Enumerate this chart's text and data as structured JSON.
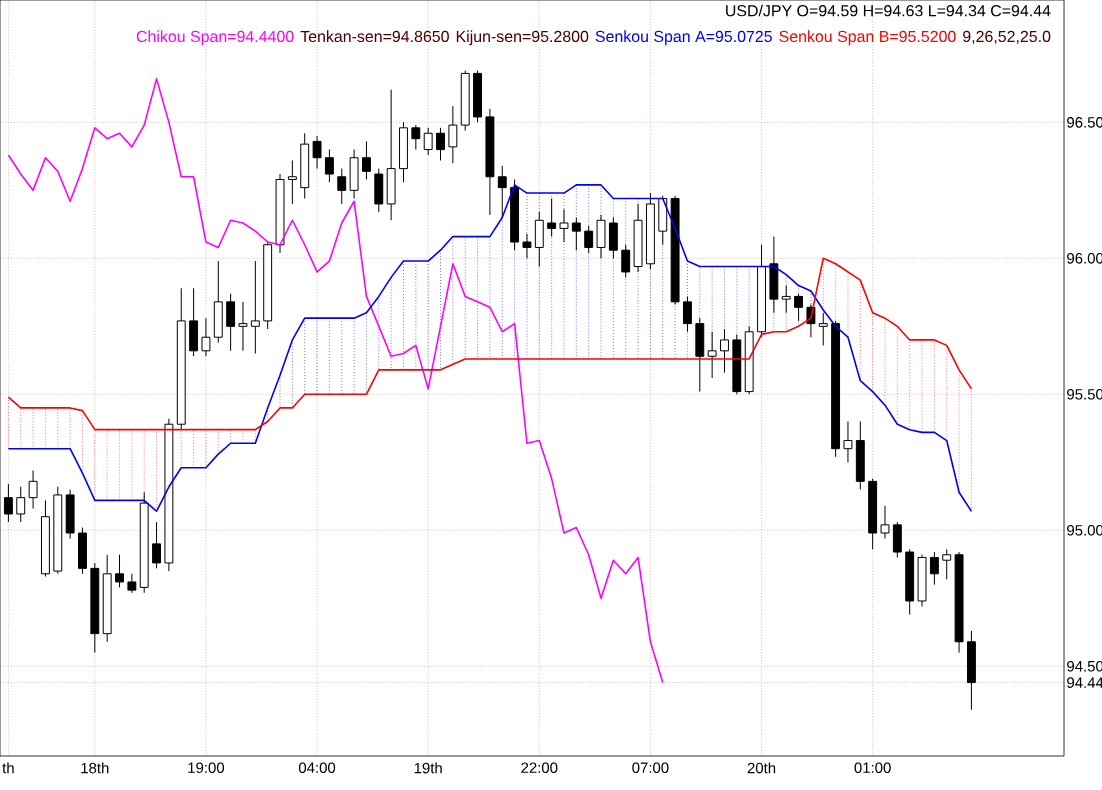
{
  "chart_data": {
    "type": "candlestick",
    "title": "USD/JPY O=94.59 H=94.63 L=94.34 C=94.44",
    "annotations": [
      "Tenkan-sen=94.8650",
      "Kijun-sen=95.2800",
      "9,26,52,25.0"
    ],
    "categories": [
      "th",
      null,
      null,
      null,
      null,
      null,
      null,
      "18th",
      null,
      null,
      null,
      null,
      null,
      null,
      null,
      null,
      "19:00",
      null,
      null,
      null,
      null,
      null,
      null,
      null,
      null,
      "04:00",
      null,
      null,
      null,
      null,
      null,
      null,
      null,
      null,
      "19th",
      null,
      null,
      null,
      null,
      null,
      null,
      null,
      null,
      "22:00",
      null,
      null,
      null,
      null,
      null,
      null,
      null,
      null,
      "07:00",
      null,
      null,
      null,
      null,
      null,
      null,
      null,
      null,
      "20th",
      null,
      null,
      null,
      null,
      null,
      null,
      null,
      null,
      "01:00",
      null,
      null,
      null,
      null,
      null,
      null,
      null,
      null
    ],
    "ohlc": [
      [
        95.12,
        95.17,
        95.03,
        95.06
      ],
      [
        95.06,
        95.16,
        95.03,
        95.12
      ],
      [
        95.12,
        95.22,
        95.08,
        95.18
      ],
      [
        94.84,
        95.11,
        94.83,
        95.05
      ],
      [
        94.85,
        95.16,
        94.84,
        95.13
      ],
      [
        95.13,
        95.15,
        94.97,
        94.99
      ],
      [
        94.99,
        95.01,
        94.84,
        94.86
      ],
      [
        94.86,
        94.88,
        94.55,
        94.62
      ],
      [
        94.62,
        94.91,
        94.59,
        94.84
      ],
      [
        94.84,
        94.91,
        94.79,
        94.81
      ],
      [
        94.81,
        94.84,
        94.77,
        94.78
      ],
      [
        94.79,
        95.14,
        94.77,
        95.1
      ],
      [
        94.95,
        95.03,
        94.86,
        94.88
      ],
      [
        94.88,
        95.41,
        94.85,
        95.39
      ],
      [
        95.39,
        95.89,
        95.37,
        95.77
      ],
      [
        95.77,
        95.89,
        95.64,
        95.66
      ],
      [
        95.66,
        95.78,
        95.64,
        95.71
      ],
      [
        95.71,
        95.99,
        95.69,
        95.84
      ],
      [
        95.84,
        95.87,
        95.66,
        95.75
      ],
      [
        95.75,
        95.84,
        95.66,
        95.76
      ],
      [
        95.75,
        95.99,
        95.65,
        95.77
      ],
      [
        95.77,
        96.06,
        95.74,
        96.05
      ],
      [
        96.05,
        96.31,
        96.02,
        96.29
      ],
      [
        96.29,
        96.36,
        96.2,
        96.3
      ],
      [
        96.26,
        96.46,
        96.22,
        96.42
      ],
      [
        96.43,
        96.45,
        96.33,
        96.37
      ],
      [
        96.37,
        96.4,
        96.28,
        96.31
      ],
      [
        96.3,
        96.33,
        96.2,
        96.25
      ],
      [
        96.25,
        96.4,
        96.22,
        96.37
      ],
      [
        96.37,
        96.43,
        96.29,
        96.32
      ],
      [
        96.31,
        96.33,
        96.17,
        96.2
      ],
      [
        96.2,
        96.62,
        96.14,
        96.33
      ],
      [
        96.33,
        96.5,
        96.28,
        96.48
      ],
      [
        96.48,
        96.49,
        96.4,
        96.44
      ],
      [
        96.4,
        96.48,
        96.38,
        96.46
      ],
      [
        96.46,
        96.48,
        96.36,
        96.4
      ],
      [
        96.41,
        96.56,
        96.35,
        96.49
      ],
      [
        96.49,
        96.69,
        96.47,
        96.68
      ],
      [
        96.68,
        96.69,
        96.5,
        96.52
      ],
      [
        96.52,
        96.55,
        96.16,
        96.3
      ],
      [
        96.3,
        96.34,
        96.15,
        96.26
      ],
      [
        96.26,
        96.29,
        96.03,
        96.06
      ],
      [
        96.06,
        96.09,
        96.0,
        96.04
      ],
      [
        96.04,
        96.17,
        95.97,
        96.14
      ],
      [
        96.13,
        96.22,
        96.08,
        96.11
      ],
      [
        96.11,
        96.18,
        96.06,
        96.13
      ],
      [
        96.13,
        96.15,
        96.03,
        96.1
      ],
      [
        96.1,
        96.12,
        96.02,
        96.04
      ],
      [
        96.04,
        96.16,
        96.0,
        96.14
      ],
      [
        96.13,
        96.15,
        96.0,
        96.03
      ],
      [
        96.03,
        96.05,
        95.93,
        95.95
      ],
      [
        95.97,
        96.2,
        95.95,
        96.14
      ],
      [
        95.98,
        96.24,
        95.96,
        96.2
      ],
      [
        96.1,
        96.23,
        96.05,
        96.22
      ],
      [
        96.22,
        96.23,
        95.83,
        95.84
      ],
      [
        95.84,
        95.86,
        95.73,
        95.76
      ],
      [
        95.76,
        95.78,
        95.51,
        95.64
      ],
      [
        95.64,
        95.73,
        95.56,
        95.66
      ],
      [
        95.66,
        95.74,
        95.58,
        95.7
      ],
      [
        95.7,
        95.72,
        95.5,
        95.51
      ],
      [
        95.51,
        95.75,
        95.5,
        95.73
      ],
      [
        95.73,
        96.05,
        95.71,
        95.97
      ],
      [
        95.98,
        96.08,
        95.8,
        95.85
      ],
      [
        95.85,
        95.9,
        95.8,
        95.86
      ],
      [
        95.86,
        95.87,
        95.77,
        95.82
      ],
      [
        95.82,
        95.83,
        95.71,
        95.76
      ],
      [
        95.75,
        95.8,
        95.68,
        95.76
      ],
      [
        95.76,
        95.77,
        95.27,
        95.3
      ],
      [
        95.3,
        95.4,
        95.25,
        95.33
      ],
      [
        95.33,
        95.4,
        95.15,
        95.18
      ],
      [
        95.18,
        95.19,
        94.93,
        94.99
      ],
      [
        94.99,
        95.09,
        94.97,
        95.02
      ],
      [
        95.02,
        95.03,
        94.9,
        94.92
      ],
      [
        94.92,
        94.93,
        94.69,
        94.74
      ],
      [
        94.74,
        94.91,
        94.72,
        94.9
      ],
      [
        94.9,
        94.92,
        94.8,
        94.84
      ],
      [
        94.89,
        94.93,
        94.82,
        94.91
      ],
      [
        94.91,
        94.92,
        94.55,
        94.59
      ],
      [
        94.59,
        94.63,
        94.34,
        94.44
      ]
    ],
    "series": [
      {
        "name": "Chikou Span=94.4400",
        "type": "line",
        "color": "#ff00ff",
        "values": [
          96.38,
          96.31,
          96.25,
          96.37,
          96.32,
          96.21,
          96.33,
          96.48,
          96.44,
          96.46,
          96.41,
          96.49,
          96.66,
          96.5,
          96.3,
          96.3,
          96.06,
          96.04,
          96.14,
          96.13,
          96.1,
          96.06,
          96.05,
          96.14,
          96.05,
          95.95,
          95.99,
          96.13,
          96.21,
          95.86,
          95.75,
          95.64,
          95.65,
          95.68,
          95.52,
          95.75,
          95.98,
          95.86,
          95.84,
          95.82,
          95.73,
          95.76,
          95.32,
          95.33,
          95.19,
          94.99,
          95.01,
          94.91,
          94.75,
          94.89,
          94.84,
          94.9,
          94.59,
          94.44,
          null,
          null,
          null,
          null,
          null,
          null,
          null,
          null,
          null,
          null,
          null,
          null,
          null,
          null,
          null,
          null,
          null,
          null,
          null,
          null,
          null,
          null,
          null,
          null,
          null
        ]
      },
      {
        "name": "Senkou Span A=95.0725",
        "type": "line",
        "color": "#0000ff",
        "values": [
          95.3,
          95.3,
          95.3,
          95.3,
          95.3,
          95.3,
          95.21,
          95.11,
          95.11,
          95.11,
          95.11,
          95.11,
          95.07,
          95.16,
          95.23,
          95.23,
          95.23,
          95.28,
          95.32,
          95.32,
          95.32,
          95.45,
          95.57,
          95.7,
          95.78,
          95.78,
          95.78,
          95.78,
          95.78,
          95.8,
          95.86,
          95.93,
          95.99,
          95.99,
          95.99,
          96.03,
          96.08,
          96.08,
          96.08,
          96.08,
          96.15,
          96.27,
          96.24,
          96.24,
          96.24,
          96.24,
          96.27,
          96.27,
          96.27,
          96.22,
          96.22,
          96.22,
          96.22,
          96.22,
          96.11,
          95.99,
          95.97,
          95.97,
          95.97,
          95.97,
          95.97,
          95.97,
          95.97,
          95.94,
          95.9,
          95.88,
          95.81,
          95.75,
          95.71,
          95.55,
          95.51,
          95.46,
          95.39,
          95.37,
          95.36,
          95.36,
          95.33,
          95.14,
          95.07
        ]
      },
      {
        "name": "Senkou Span B=95.5200",
        "type": "line",
        "color": "#ff0000",
        "values": [
          95.49,
          95.45,
          95.45,
          95.45,
          95.45,
          95.45,
          95.44,
          95.37,
          95.37,
          95.37,
          95.37,
          95.37,
          95.37,
          95.37,
          95.37,
          95.37,
          95.37,
          95.37,
          95.37,
          95.37,
          95.37,
          95.4,
          95.45,
          95.45,
          95.5,
          95.5,
          95.5,
          95.5,
          95.5,
          95.5,
          95.59,
          95.59,
          95.59,
          95.59,
          95.59,
          95.59,
          95.61,
          95.63,
          95.63,
          95.63,
          95.63,
          95.63,
          95.63,
          95.63,
          95.63,
          95.63,
          95.63,
          95.63,
          95.63,
          95.63,
          95.63,
          95.63,
          95.63,
          95.63,
          95.63,
          95.63,
          95.63,
          95.63,
          95.63,
          95.63,
          95.63,
          95.72,
          95.73,
          95.73,
          95.75,
          95.78,
          96.0,
          95.98,
          95.95,
          95.92,
          95.8,
          95.78,
          95.75,
          95.7,
          95.7,
          95.7,
          95.68,
          95.59,
          95.52
        ]
      }
    ],
    "ylim": [
      94.17,
      96.95
    ],
    "yticks": [
      {
        "value": 94.5,
        "label": "94.50"
      },
      {
        "value": 95.0,
        "label": "95.00"
      },
      {
        "value": 95.5,
        "label": "95.50"
      },
      {
        "value": 96.0,
        "label": "96.00"
      },
      {
        "value": 96.5,
        "label": "96.50"
      },
      {
        "value": 94.44,
        "label": "94.44"
      }
    ],
    "grid": true,
    "legend": "top right"
  }
}
